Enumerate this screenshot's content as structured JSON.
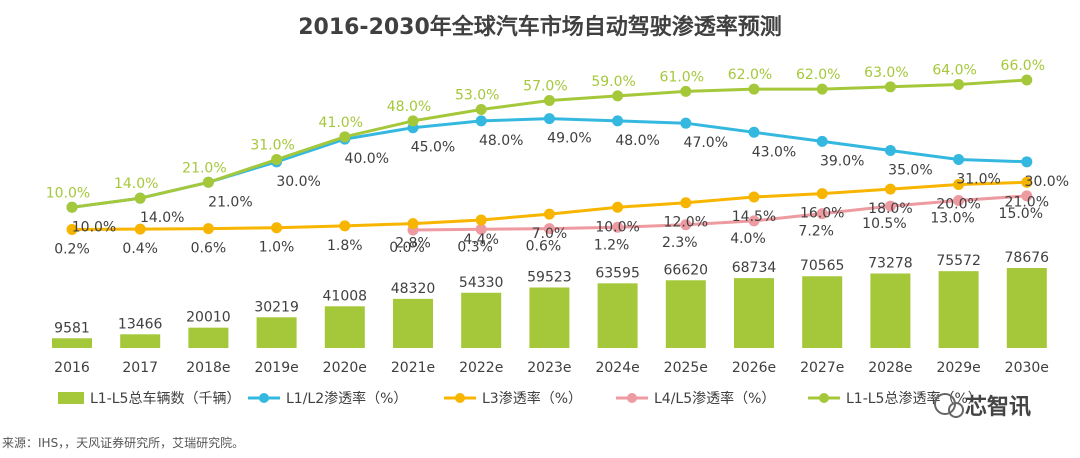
{
  "chart_data": {
    "type": "bar+line",
    "title": "2016-2030年全球汽车市场自动驾驶渗透率预测",
    "categories": [
      "2016",
      "2017",
      "2018e",
      "2019e",
      "2020e",
      "2021e",
      "2022e",
      "2023e",
      "2024e",
      "2025e",
      "2026e",
      "2027e",
      "2028e",
      "2029e",
      "2030e"
    ],
    "bars": {
      "name": "L1-L5总车辆数（千辆）",
      "values": [
        9581,
        13466,
        20010,
        30219,
        41008,
        48320,
        54330,
        59523,
        63595,
        66620,
        68734,
        70565,
        73278,
        75572,
        78676
      ],
      "color": "#a5c83b"
    },
    "series": [
      {
        "name": "L1/L2渗透率（%）",
        "color": "#35b8e0",
        "values": [
          10.0,
          14.0,
          21.0,
          30.0,
          40.0,
          45.0,
          48.0,
          49.0,
          48.0,
          47.0,
          43.0,
          39.0,
          35.0,
          31.0,
          30.0
        ],
        "labels": [
          "10.0%",
          "14.0%",
          "21.0%",
          "30.0%",
          "40.0%",
          "45.0%",
          "48.0%",
          "49.0%",
          "48.0%",
          "47.0%",
          "43.0%",
          "39.0%",
          "35.0%",
          "31.0%",
          "30.0%"
        ]
      },
      {
        "name": "L3渗透率（%）",
        "color": "#f7b500",
        "values": [
          0.2,
          0.4,
          0.6,
          1.0,
          1.8,
          2.8,
          4.4,
          7.0,
          10.0,
          12.0,
          14.5,
          16.0,
          18.0,
          20.0,
          21.0
        ],
        "labels": [
          "0.2%",
          "0.4%",
          "0.6%",
          "1.0%",
          "1.8%",
          "2.8%",
          "4.4%",
          "7.0%",
          "10.0%",
          "12.0%",
          "14.5%",
          "16.0%",
          "18.0%",
          "20.0%",
          "21.0%"
        ]
      },
      {
        "name": "L4/L5渗透率（%）",
        "color": "#ee9aa1",
        "start_index": 5,
        "values": [
          null,
          null,
          null,
          null,
          null,
          0.0,
          0.3,
          0.6,
          1.2,
          2.3,
          4.0,
          7.2,
          10.5,
          13.0,
          15.0
        ],
        "labels": [
          "",
          "",
          "",
          "",
          "",
          "0.0%",
          "0.3%",
          "0.6%",
          "1.2%",
          "2.3%",
          "4.0%",
          "7.2%",
          "10.5%",
          "13.0%",
          "15.0%"
        ]
      },
      {
        "name": "L1-L5总渗透率（%）",
        "color": "#a5c83b",
        "values": [
          10.0,
          14.0,
          21.0,
          31.0,
          41.0,
          48.0,
          53.0,
          57.0,
          59.0,
          61.0,
          62.0,
          62.0,
          63.0,
          64.0,
          66.0
        ],
        "labels": [
          "10.0%",
          "14.0%",
          "21.0%",
          "31.0%",
          "41.0%",
          "48.0%",
          "53.0%",
          "57.0%",
          "59.0%",
          "61.0%",
          "62.0%",
          "62.0%",
          "63.0%",
          "64.0%",
          "66.0%"
        ]
      }
    ],
    "legend_position": "bottom",
    "grid": false
  },
  "source_note": "来源：IHS，，天风证券研究所，艾瑞研究院。",
  "watermark": "芯智讯"
}
